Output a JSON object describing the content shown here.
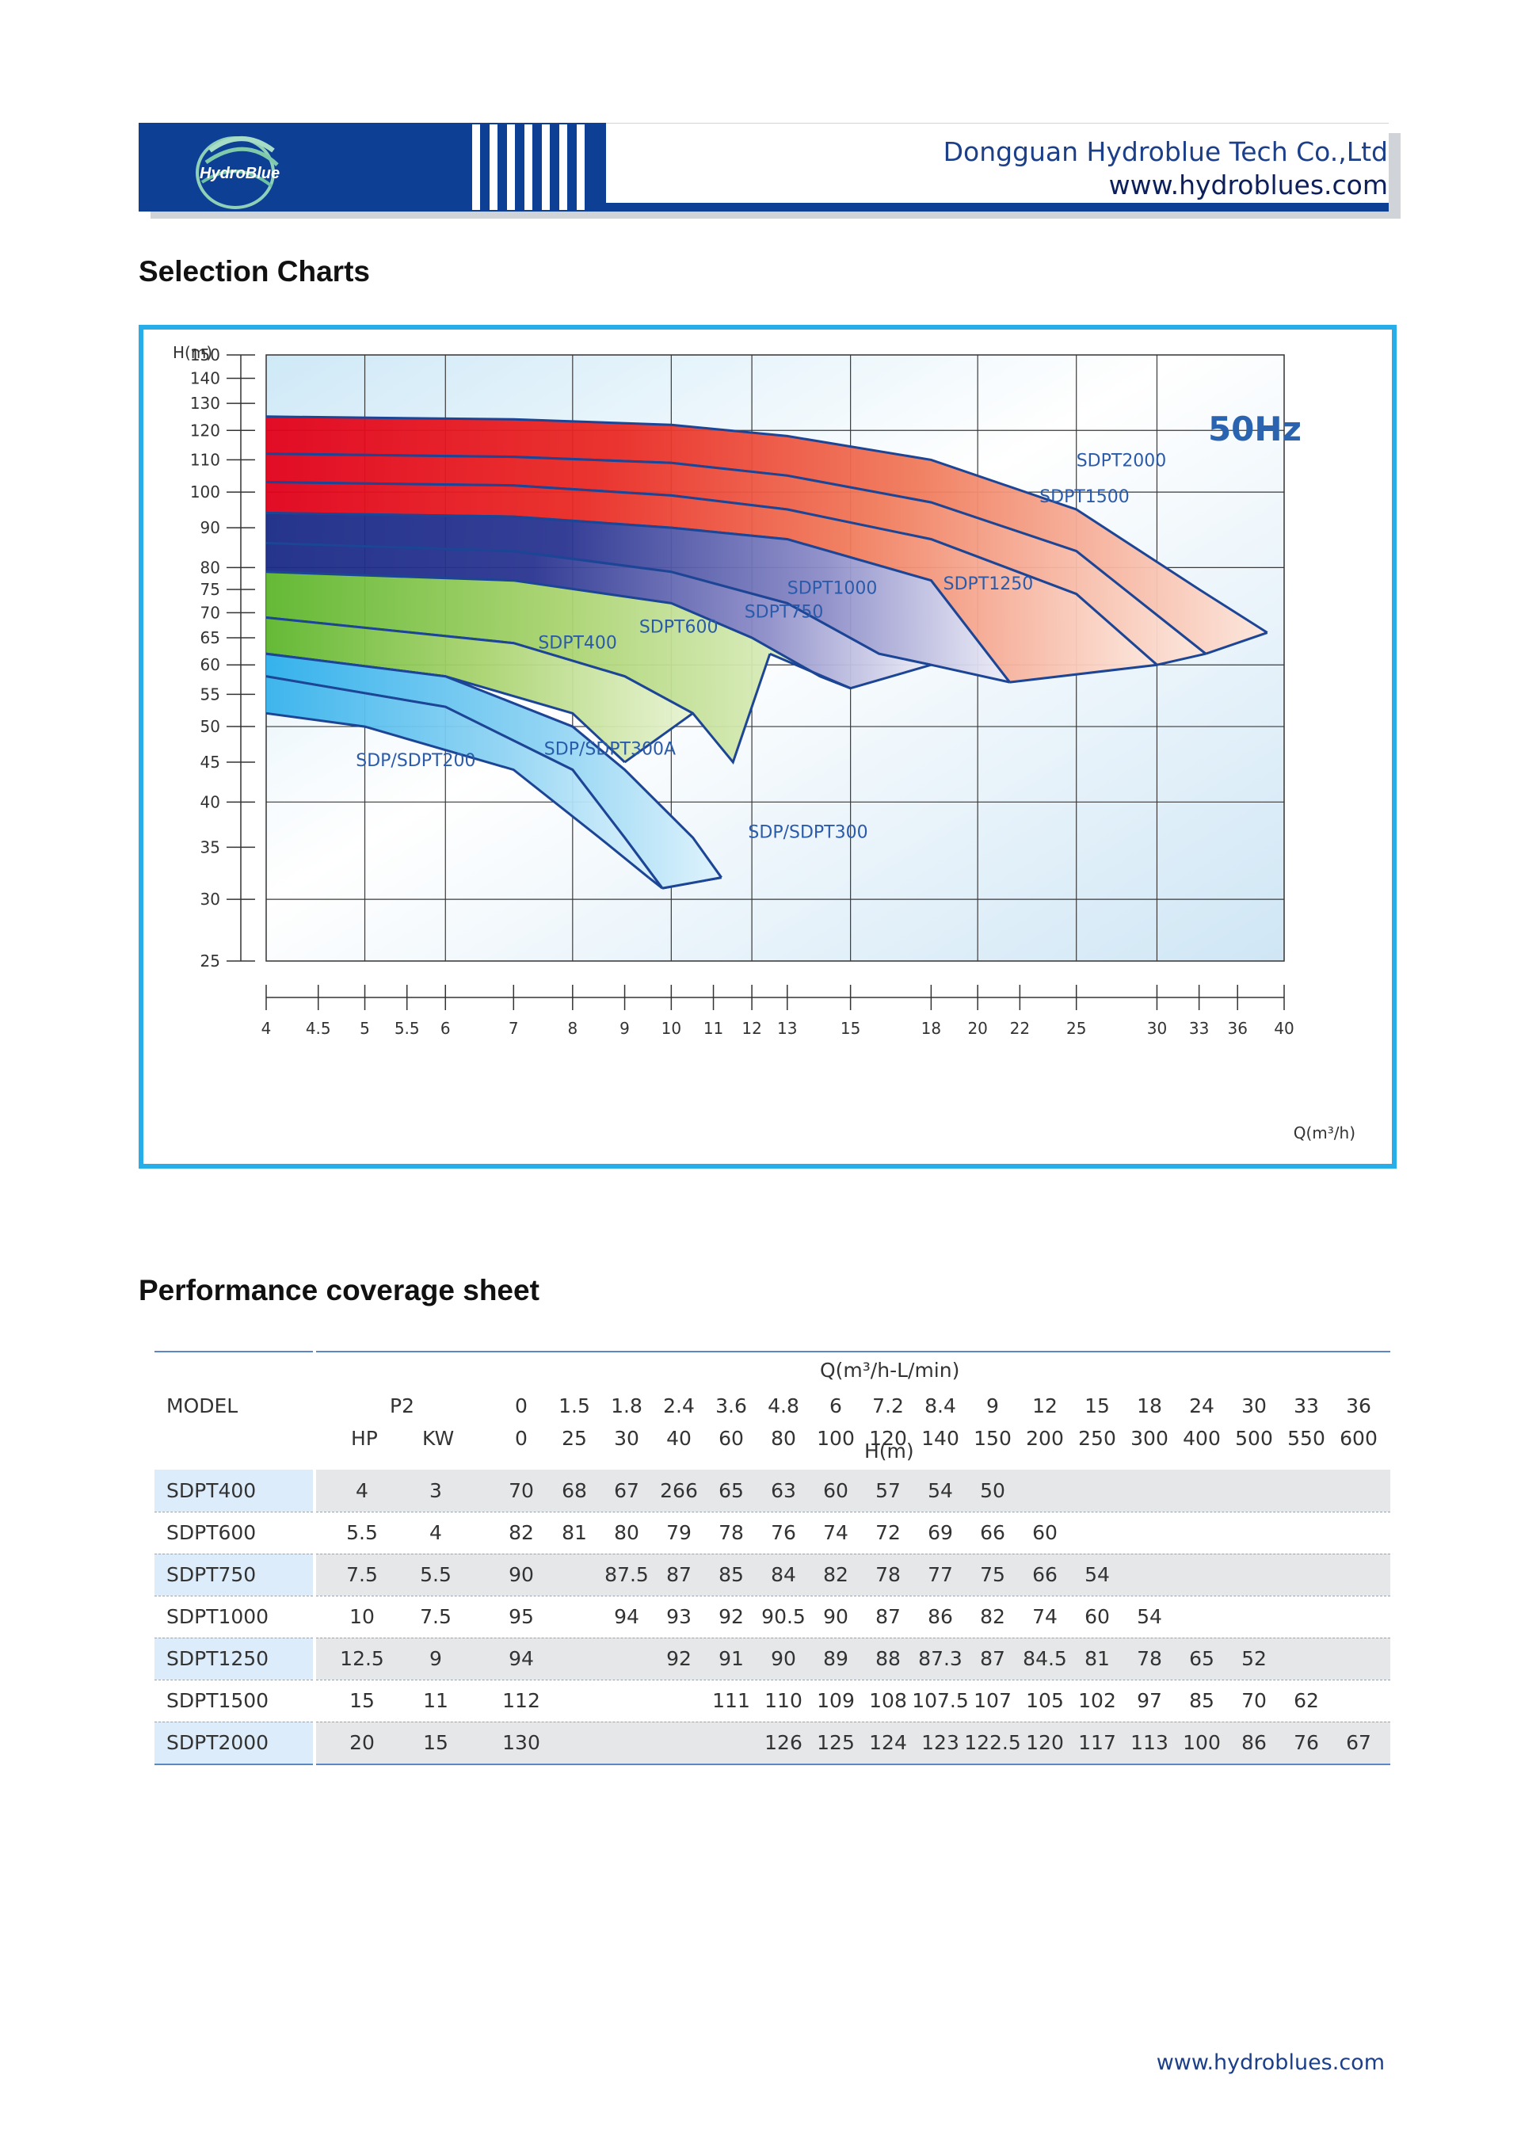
{
  "header": {
    "logo_text": "HydroBlue",
    "company": "Dongguan Hydroblue Tech Co.,Ltd",
    "website": "www.hydroblues.com",
    "brand_blue": "#0d3f95"
  },
  "sections": {
    "selection_title": "Selection Charts",
    "performance_title": "Performance coverage sheet"
  },
  "chart_data": {
    "type": "area",
    "badge": "50Hz",
    "ylabel": "H(m)",
    "xlabel": "Q(m³/h)",
    "x_scale": "log",
    "y_scale": "log",
    "xlim": [
      4,
      40
    ],
    "ylim": [
      25,
      150
    ],
    "x_ticks": [
      4,
      4.5,
      5,
      5.5,
      6,
      7,
      8,
      9,
      10,
      11,
      12,
      13,
      15,
      18,
      20,
      22,
      25,
      30,
      33,
      36,
      40
    ],
    "y_ticks": [
      25,
      30,
      35,
      40,
      45,
      50,
      55,
      60,
      65,
      70,
      75,
      80,
      90,
      100,
      110,
      120,
      130,
      140,
      150
    ],
    "grid": true,
    "series": [
      {
        "name": "SDPT2000",
        "color": "#e8202a",
        "top": [
          [
            4,
            125
          ],
          [
            7,
            124
          ],
          [
            10,
            122
          ],
          [
            13,
            118
          ],
          [
            18,
            110
          ],
          [
            25,
            95
          ],
          [
            33,
            75
          ],
          [
            38.5,
            66
          ]
        ],
        "bottom": [
          [
            4,
            112
          ],
          [
            7,
            111
          ],
          [
            10,
            109
          ],
          [
            13,
            105
          ],
          [
            18,
            97
          ],
          [
            25,
            84
          ],
          [
            33.5,
            62
          ]
        ]
      },
      {
        "name": "SDPT1500",
        "color": "#e8202a",
        "top": [
          [
            4,
            112
          ],
          [
            7,
            111
          ],
          [
            10,
            109
          ],
          [
            13,
            105
          ],
          [
            18,
            97
          ],
          [
            25,
            84
          ],
          [
            33.5,
            62
          ]
        ],
        "bottom": [
          [
            4,
            103
          ],
          [
            7,
            102
          ],
          [
            10,
            99
          ],
          [
            13,
            95
          ],
          [
            18,
            87
          ],
          [
            25,
            74
          ],
          [
            30,
            60
          ]
        ]
      },
      {
        "name": "SDPT1250",
        "color": "#e8202a",
        "top": [
          [
            4,
            103
          ],
          [
            7,
            102
          ],
          [
            10,
            99
          ],
          [
            13,
            95
          ],
          [
            18,
            87
          ],
          [
            25,
            74
          ],
          [
            30,
            60
          ]
        ],
        "bottom": [
          [
            4,
            94
          ],
          [
            7,
            93
          ],
          [
            10,
            90
          ],
          [
            13,
            87
          ],
          [
            18,
            77
          ],
          [
            21.5,
            57
          ]
        ]
      },
      {
        "name": "SDPT1000",
        "color": "#1f2f8a",
        "top": [
          [
            4,
            94
          ],
          [
            7,
            93
          ],
          [
            10,
            90
          ],
          [
            13,
            87
          ],
          [
            18,
            77
          ],
          [
            21.5,
            57
          ]
        ],
        "bottom": [
          [
            4,
            86
          ],
          [
            7,
            84
          ],
          [
            10,
            79
          ],
          [
            13,
            72
          ],
          [
            16,
            62
          ],
          [
            18,
            60
          ]
        ]
      },
      {
        "name": "SDPT750",
        "color": "#1f2f8a",
        "top": [
          [
            4,
            86
          ],
          [
            7,
            84
          ],
          [
            10,
            79
          ],
          [
            13,
            72
          ],
          [
            16,
            62
          ],
          [
            18,
            60
          ]
        ],
        "bottom": [
          [
            4,
            79
          ],
          [
            7,
            77
          ],
          [
            10,
            72
          ],
          [
            12,
            65
          ],
          [
            14,
            58
          ],
          [
            15,
            56
          ]
        ]
      },
      {
        "name": "SDPT600",
        "color": "#62b832",
        "top": [
          [
            4,
            79
          ],
          [
            7,
            77
          ],
          [
            10,
            72
          ],
          [
            12,
            65
          ],
          [
            14,
            58
          ],
          [
            15,
            56
          ]
        ],
        "bottom": [
          [
            4,
            69
          ],
          [
            7,
            64
          ],
          [
            9,
            58
          ],
          [
            10.5,
            52
          ],
          [
            11.5,
            45
          ],
          [
            12.5,
            62
          ]
        ]
      },
      {
        "name": "SDPT400",
        "color": "#62b832",
        "top": [
          [
            4,
            69
          ],
          [
            7,
            64
          ],
          [
            9,
            58
          ],
          [
            10.5,
            52
          ]
        ],
        "bottom": [
          [
            4,
            62
          ],
          [
            6,
            58
          ],
          [
            8,
            52
          ],
          [
            9,
            45
          ]
        ]
      },
      {
        "name": "SDP/SDPT300A",
        "color": "#3bb3ea",
        "top": [
          [
            4,
            62
          ],
          [
            6,
            58
          ],
          [
            8,
            50
          ],
          [
            9,
            44
          ],
          [
            10.5,
            36
          ],
          [
            11.2,
            32
          ]
        ],
        "bottom": [
          [
            4,
            58
          ],
          [
            6,
            53
          ],
          [
            8,
            44
          ],
          [
            9,
            36
          ],
          [
            9.8,
            31
          ]
        ]
      },
      {
        "name": "SDP/SDPT300",
        "color": "#3bb3ea",
        "top": [
          [
            4,
            62
          ],
          [
            6,
            58
          ],
          [
            8,
            50
          ],
          [
            9,
            44
          ],
          [
            10.5,
            36
          ],
          [
            11.2,
            32
          ]
        ],
        "bottom": [
          [
            4,
            58
          ],
          [
            6,
            53
          ],
          [
            8,
            44
          ],
          [
            9,
            36
          ],
          [
            9.8,
            31
          ]
        ]
      },
      {
        "name": "SDP/SDPT200",
        "color": "#3bb3ea",
        "top": [
          [
            4,
            58
          ],
          [
            6,
            53
          ],
          [
            8,
            44
          ],
          [
            9,
            36
          ],
          [
            9.8,
            31
          ]
        ],
        "bottom": [
          [
            4,
            52
          ],
          [
            5,
            50
          ],
          [
            7,
            44
          ],
          [
            8.5,
            36
          ],
          [
            9.5,
            32
          ]
        ]
      }
    ],
    "labels": [
      {
        "text": "SDPT2000",
        "q": 25,
        "h": 108
      },
      {
        "text": "SDPT1500",
        "q": 23,
        "h": 97
      },
      {
        "text": "SDPT1250",
        "q": 18.5,
        "h": 75
      },
      {
        "text": "SDPT1000",
        "q": 13,
        "h": 74
      },
      {
        "text": "SDPT750",
        "q": 11.8,
        "h": 69
      },
      {
        "text": "SDPT600",
        "q": 9.3,
        "h": 66
      },
      {
        "text": "SDPT400",
        "q": 7.4,
        "h": 63
      },
      {
        "text": "SDP/SDPT300A",
        "q": 7.5,
        "h": 46
      },
      {
        "text": "SDP/SDPT200",
        "q": 4.9,
        "h": 44.5
      },
      {
        "text": "SDP/SDPT300",
        "q": 11.9,
        "h": 36
      }
    ]
  },
  "performance_table": {
    "model_header": "MODEL",
    "p2_header": "P2",
    "hp_header": "HP",
    "kw_header": "KW",
    "q_header": "Q(m³/h-L/min)",
    "h_header": "H(m)",
    "q_m3h": [
      "0",
      "1.5",
      "1.8",
      "2.4",
      "3.6",
      "4.8",
      "6",
      "7.2",
      "8.4",
      "9",
      "12",
      "15",
      "18",
      "24",
      "30",
      "33",
      "36"
    ],
    "q_lmin": [
      "0",
      "25",
      "30",
      "40",
      "60",
      "80",
      "100",
      "120",
      "140",
      "150",
      "200",
      "250",
      "300",
      "400",
      "500",
      "550",
      "600"
    ],
    "rows": [
      {
        "model": "SDPT400",
        "hp": "4",
        "kw": "3",
        "h": [
          "70",
          "68",
          "67",
          "266",
          "65",
          "63",
          "60",
          "57",
          "54",
          "50",
          "",
          "",
          "",
          "",
          "",
          "",
          ""
        ]
      },
      {
        "model": "SDPT600",
        "hp": "5.5",
        "kw": "4",
        "h": [
          "82",
          "81",
          "80",
          "79",
          "78",
          "76",
          "74",
          "72",
          "69",
          "66",
          "60",
          "",
          "",
          "",
          "",
          "",
          ""
        ]
      },
      {
        "model": "SDPT750",
        "hp": "7.5",
        "kw": "5.5",
        "h": [
          "90",
          "",
          "87.5",
          "87",
          "85",
          "84",
          "82",
          "78",
          "77",
          "75",
          "66",
          "54",
          "",
          "",
          "",
          "",
          ""
        ]
      },
      {
        "model": "SDPT1000",
        "hp": "10",
        "kw": "7.5",
        "h": [
          "95",
          "",
          "94",
          "93",
          "92",
          "90.5",
          "90",
          "87",
          "86",
          "82",
          "74",
          "60",
          "54",
          "",
          "",
          "",
          ""
        ]
      },
      {
        "model": "SDPT1250",
        "hp": "12.5",
        "kw": "9",
        "h": [
          "94",
          "",
          "",
          "92",
          "91",
          "90",
          "89",
          "88",
          "87.3",
          "87",
          "84.5",
          "81",
          "78",
          "65",
          "52",
          "",
          ""
        ]
      },
      {
        "model": "SDPT1500",
        "hp": "15",
        "kw": "11",
        "h": [
          "112",
          "",
          "",
          "",
          "111",
          "110",
          "109",
          "108",
          "107.5",
          "107",
          "105",
          "102",
          "97",
          "85",
          "70",
          "62",
          ""
        ]
      },
      {
        "model": "SDPT2000",
        "hp": "20",
        "kw": "15",
        "h": [
          "130",
          "",
          "",
          "",
          "",
          "126",
          "125",
          "124",
          "123",
          "122.5",
          "120",
          "117",
          "113",
          "100",
          "86",
          "76",
          "67"
        ]
      }
    ]
  },
  "footer": {
    "website": "www.hydroblues.com"
  }
}
